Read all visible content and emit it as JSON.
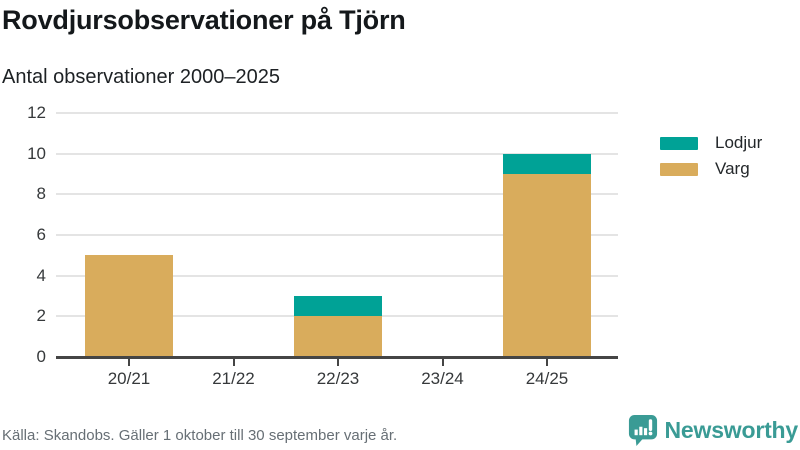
{
  "chart_data": {
    "type": "bar",
    "stacked": true,
    "title": "Rovdjursobservationer på Tjörn",
    "subtitle": "Antal observationer 2000–2025",
    "categories": [
      "20/21",
      "21/22",
      "22/23",
      "23/24",
      "24/25"
    ],
    "series": [
      {
        "name": "Lodjur",
        "color": "#00a296",
        "values": [
          0,
          0,
          1,
          0,
          1
        ]
      },
      {
        "name": "Varg",
        "color": "#d9ac5c",
        "values": [
          5,
          0,
          2,
          0,
          9
        ]
      }
    ],
    "ylim": [
      0,
      12
    ],
    "yticks": [
      0,
      2,
      4,
      6,
      8,
      10,
      12
    ],
    "grid": true,
    "legend_position": "right"
  },
  "footer": {
    "source": "Källa: Skandobs. Gäller 1 oktober till 30 september varje år.",
    "brand": "Newsworthy"
  },
  "colors": {
    "accent_teal": "#00a296",
    "accent_gold": "#d9ac5c",
    "brand_teal": "#3a9b95"
  }
}
